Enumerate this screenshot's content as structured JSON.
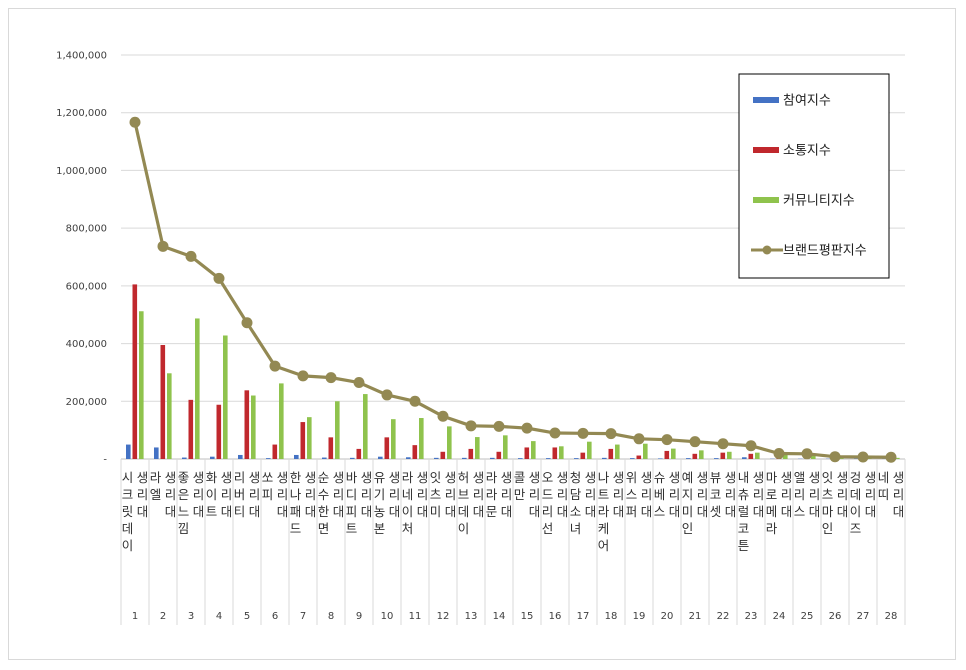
{
  "chart_data": {
    "type": "bar",
    "categories": [
      "시크릿데이 생리대",
      "라엘 생리대",
      "좋은느낌 생리대",
      "화이트 생리대",
      "리버티 생리대",
      "쏘피 생리대",
      "한나패드 생리대",
      "순수한면 생리대",
      "바디피트 생리대",
      "유기농본 생리대",
      "라네이처 생리대",
      "잇츠미 생리대",
      "허브데이 생리대",
      "라라문 생리대",
      "콜만 생리대",
      "오드리선 생리대",
      "청담소녀 생리대",
      "나트라케어 생리대",
      "위스퍼 생리대",
      "슈베스 생리대",
      "예지미인 생리대",
      "뷰코셋 생리대",
      "내츄럴코튼 생리대",
      "마로메라 생리대",
      "앨리스 생리대",
      "잇츠마인 생리대",
      "겅데이즈 생리대",
      "네띠 생리대"
    ],
    "ranks": [
      "1",
      "2",
      "3",
      "4",
      "5",
      "6",
      "7",
      "8",
      "9",
      "10",
      "11",
      "12",
      "13",
      "14",
      "15",
      "16",
      "17",
      "18",
      "19",
      "20",
      "21",
      "22",
      "23",
      "24",
      "25",
      "26",
      "27",
      "28"
    ],
    "series": [
      {
        "name": "참여지수",
        "kind": "bar",
        "color": "#4472c4",
        "values": [
          50000,
          40000,
          5000,
          8000,
          14000,
          3000,
          14000,
          5000,
          4000,
          8000,
          6000,
          4000,
          4000,
          4000,
          3000,
          3000,
          3000,
          4000,
          3000,
          2000,
          3000,
          3000,
          6000,
          1000,
          1000,
          1000,
          1000,
          1000
        ]
      },
      {
        "name": "소통지수",
        "kind": "bar",
        "color": "#c0282d",
        "values": [
          605000,
          395000,
          205000,
          188000,
          238000,
          50000,
          128000,
          75000,
          35000,
          75000,
          48000,
          25000,
          35000,
          25000,
          40000,
          40000,
          22000,
          35000,
          12000,
          28000,
          18000,
          22000,
          18000,
          4000,
          3000,
          3000,
          2000,
          2000
        ]
      },
      {
        "name": "커뮤니티지수",
        "kind": "bar",
        "color": "#8fc34d",
        "values": [
          512000,
          297000,
          487000,
          428000,
          220000,
          262000,
          145000,
          200000,
          225000,
          138000,
          142000,
          113000,
          76000,
          82000,
          62000,
          44000,
          60000,
          50000,
          53000,
          36000,
          30000,
          25000,
          22000,
          14000,
          14000,
          4000,
          4000,
          4000
        ]
      },
      {
        "name": "브랜드평판지수",
        "kind": "line",
        "color": "#938953",
        "values": [
          1167000,
          737000,
          702000,
          626000,
          472000,
          322000,
          288000,
          282000,
          265000,
          222000,
          200000,
          148000,
          115000,
          113000,
          107000,
          90000,
          89000,
          88000,
          70000,
          67000,
          60000,
          53000,
          46000,
          19000,
          18000,
          8000,
          7000,
          6000
        ]
      }
    ],
    "y_ticks": [
      "-",
      "200,000",
      "400,000",
      "600,000",
      "800,000",
      "1,000,000",
      "1,200,000",
      "1,400,000"
    ],
    "ylim": [
      0,
      1400000
    ],
    "grid": true,
    "legend_position": "top-right"
  }
}
